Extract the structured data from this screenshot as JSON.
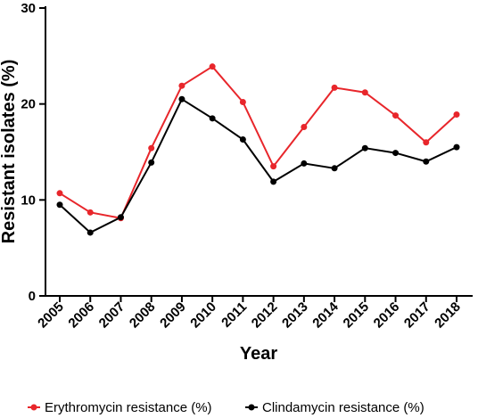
{
  "chart_data": {
    "type": "line",
    "title": "",
    "xlabel": "Year",
    "ylabel": "Resistant isolates (%)",
    "categories": [
      "2005",
      "2006",
      "2007",
      "2008",
      "2009",
      "2010",
      "2011",
      "2012",
      "2013",
      "2014",
      "2015",
      "2016",
      "2017",
      "2018"
    ],
    "ylim": [
      0,
      30
    ],
    "yticks": [
      "0",
      "10",
      "20",
      "30"
    ],
    "grid": false,
    "legend_position": "bottom",
    "series": [
      {
        "name": "Erythromycin resistance (%)",
        "color": "#e8262b",
        "values": [
          10.7,
          8.7,
          8.1,
          15.4,
          21.9,
          23.9,
          20.2,
          13.5,
          17.6,
          21.7,
          21.2,
          18.8,
          16.0,
          18.9
        ]
      },
      {
        "name": "Clindamycin resistance (%)",
        "color": "#000000",
        "values": [
          9.5,
          6.6,
          8.2,
          13.9,
          20.5,
          18.5,
          16.3,
          11.9,
          13.8,
          13.3,
          15.4,
          14.9,
          14.0,
          15.5
        ]
      }
    ]
  }
}
